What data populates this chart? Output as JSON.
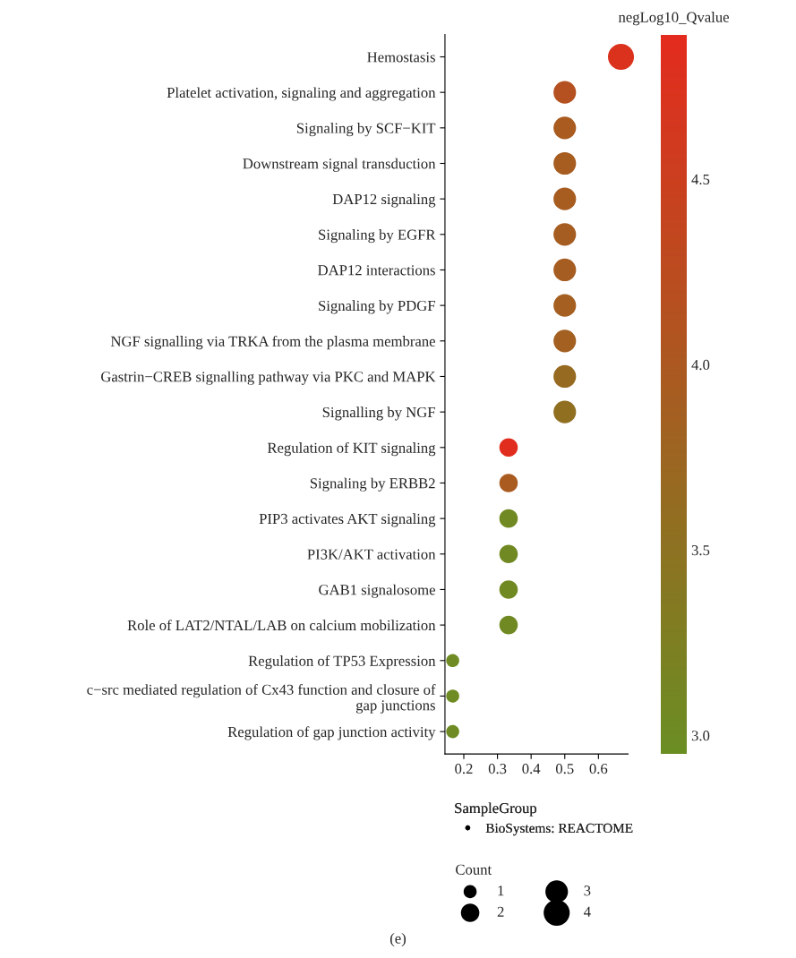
{
  "chart_data": {
    "type": "bubble",
    "categories": [
      "Hemostasis",
      "Platelet activation, signaling and aggregation",
      "Signaling by SCF−KIT",
      "Downstream signal transduction",
      "DAP12 signaling",
      "Signaling by EGFR",
      "DAP12 interactions",
      "Signaling by PDGF",
      "NGF signalling via TRKA from the plasma membrane",
      "Gastrin−CREB signalling pathway via PKC and MAPK",
      "Signalling by NGF",
      "Regulation of KIT signaling",
      "Signaling by ERBB2",
      "PIP3 activates AKT signaling",
      "PI3K/AKT activation",
      "GAB1 signalosome",
      "Role of LAT2/NTAL/LAB on calcium mobilization",
      "Regulation of TP53 Expression",
      "c−src mediated regulation of Cx43 function and closure of\ngap junctions",
      "Regulation of gap junction activity"
    ],
    "series": [
      {
        "name": "BioSystems: REACTOME",
        "values": [
          0.667,
          0.5,
          0.5,
          0.5,
          0.5,
          0.5,
          0.5,
          0.5,
          0.5,
          0.5,
          0.5,
          0.333,
          0.333,
          0.333,
          0.333,
          0.333,
          0.333,
          0.167,
          0.167,
          0.167
        ],
        "sizes": [
          4,
          3,
          3,
          3,
          3,
          3,
          3,
          3,
          3,
          3,
          3,
          2,
          2,
          2,
          2,
          2,
          2,
          1,
          1,
          1
        ],
        "cvalues": [
          4.75,
          4.15,
          3.95,
          3.92,
          3.92,
          3.9,
          3.9,
          3.88,
          3.85,
          3.65,
          3.55,
          4.85,
          3.95,
          3.05,
          3.05,
          3.05,
          3.05,
          3.0,
          3.0,
          3.0
        ]
      }
    ],
    "orientation": "horizontal",
    "xlim": [
      0.144,
      0.688
    ],
    "xticks": [
      0.2,
      0.3,
      0.4,
      0.5,
      0.6
    ],
    "size_legend": [
      1,
      2,
      3,
      4
    ],
    "clabel": "negLog10_Qvalue",
    "clim": [
      2.95,
      4.89
    ],
    "cticks": [
      {
        "value": 3,
        "label": "3.0"
      },
      3.5,
      {
        "value": 4,
        "label": "4.0"
      },
      4.5
    ],
    "colors": [
      "#6b8e23",
      "#e32b1e"
    ],
    "legend_title": "SampleGroup",
    "legend": "bottom",
    "grid": false,
    "annotations": [
      "Count",
      "(e)"
    ]
  }
}
